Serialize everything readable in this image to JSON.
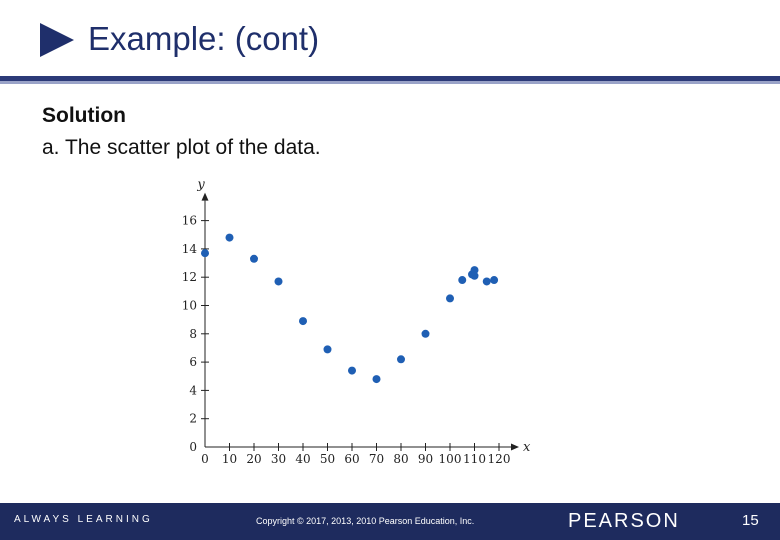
{
  "slide": {
    "title": "Example: (cont)",
    "solution_heading": "Solution",
    "solution_text": "a. The scatter plot of the data."
  },
  "footer": {
    "tagline": "ALWAYS LEARNING",
    "copyright": "Copyright © 2017, 2013, 2010 Pearson Education, Inc.",
    "brand": "PEARSON",
    "page_number": "15"
  },
  "colors": {
    "title": "#1f2f6b",
    "footer_bg": "#1e2b5e",
    "points": "#1f5fb4"
  },
  "chart_data": {
    "type": "scatter",
    "xlabel": "x",
    "ylabel": "y",
    "xlim": [
      0,
      120
    ],
    "ylim": [
      0,
      16
    ],
    "xticks": [
      0,
      10,
      20,
      30,
      40,
      50,
      60,
      70,
      80,
      90,
      100,
      110,
      120
    ],
    "yticks": [
      0,
      2,
      4,
      6,
      8,
      10,
      12,
      14,
      16
    ],
    "grid": false,
    "points": [
      {
        "x": 0,
        "y": 13.7
      },
      {
        "x": 10,
        "y": 14.8
      },
      {
        "x": 20,
        "y": 13.3
      },
      {
        "x": 30,
        "y": 11.7
      },
      {
        "x": 40,
        "y": 8.9
      },
      {
        "x": 50,
        "y": 6.9
      },
      {
        "x": 60,
        "y": 5.4
      },
      {
        "x": 70,
        "y": 4.8
      },
      {
        "x": 80,
        "y": 6.2
      },
      {
        "x": 90,
        "y": 8.0
      },
      {
        "x": 100,
        "y": 10.5
      },
      {
        "x": 105,
        "y": 11.8
      },
      {
        "x": 109,
        "y": 12.2
      },
      {
        "x": 110,
        "y": 12.5
      },
      {
        "x": 110,
        "y": 12.1
      },
      {
        "x": 115,
        "y": 11.7
      },
      {
        "x": 118,
        "y": 11.8
      }
    ]
  }
}
